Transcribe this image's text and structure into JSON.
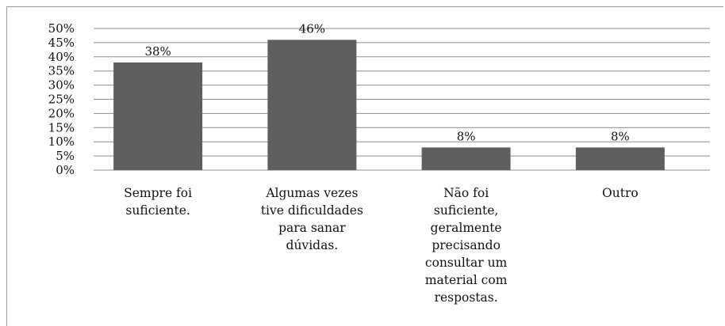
{
  "chart_data": {
    "type": "bar",
    "categories": [
      [
        "Sempre foi",
        "suficiente."
      ],
      [
        "Algumas vezes",
        "tive dificuldades",
        "para sanar",
        "dúvidas."
      ],
      [
        "Não foi",
        "suficiente,",
        "geralmente",
        "precisando",
        "consultar um",
        "material com",
        "respostas."
      ],
      [
        "Outro"
      ]
    ],
    "values": [
      38,
      46,
      8,
      8
    ],
    "data_labels": [
      "38%",
      "46%",
      "8%",
      "8%"
    ],
    "y_ticks": [
      "50%",
      "45%",
      "40%",
      "35%",
      "30%",
      "25%",
      "20%",
      "15%",
      "10%",
      "5%",
      "0%"
    ],
    "ylim": [
      0,
      50
    ],
    "grid": true,
    "bar_color": "#5f5f5f",
    "grid_color": "#8c8c8c"
  }
}
